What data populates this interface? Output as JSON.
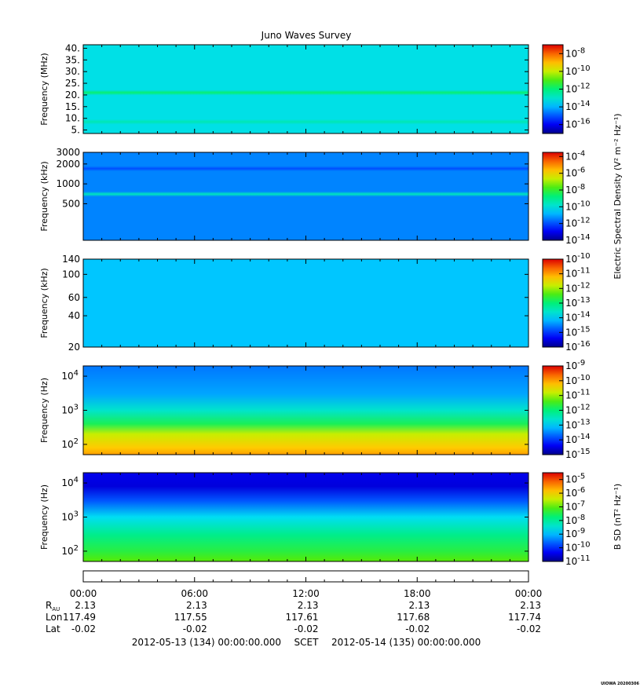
{
  "title": "Juno Waves Survey",
  "footer_tag": "UIOWA 20200306",
  "colorbar_labels": {
    "electric": "Electric Spectral Density (V² m⁻² Hz⁻¹)",
    "magnetic": "B SD (nT² Hz⁻¹)"
  },
  "chart_data": [
    {
      "type": "heatmap",
      "panel": "hfr-high",
      "ylabel": "Frequency (MHz)",
      "yscale": "linear",
      "ylim": [
        3.5,
        41.5
      ],
      "yticks": [
        "5.",
        "10.",
        "15.",
        "20.",
        "25.",
        "30.",
        "35.",
        "40."
      ],
      "ytick_values": [
        5,
        10,
        15,
        20,
        25,
        30,
        35,
        40
      ],
      "colorbar": {
        "scale": "log",
        "range_exp": [
          -17,
          -7
        ],
        "tick_bases": [
          "10",
          "10",
          "10",
          "10",
          "10"
        ],
        "tick_exponents": [
          "-16",
          "-14",
          "-12",
          "-10",
          "-8"
        ],
        "tick_values_exp": [
          -16,
          -14,
          -12,
          -10,
          -8
        ]
      },
      "background_level_exp": -13.3,
      "bands": [
        {
          "freq": 21,
          "level_exp": -11.9
        },
        {
          "freq": 8.5,
          "level_exp": -12.7
        }
      ]
    },
    {
      "type": "heatmap",
      "panel": "hfr-low",
      "ylabel": "Frequency (kHz)",
      "yscale": "log",
      "ylim": [
        140,
        3000
      ],
      "yticks": [
        "500",
        "1000",
        "2000",
        "3000"
      ],
      "ytick_values": [
        500,
        1000,
        2000,
        3000
      ],
      "colorbar": {
        "scale": "log",
        "range_exp": [
          -14,
          -3.5
        ],
        "tick_bases": [
          "10",
          "10",
          "10",
          "10",
          "10",
          "10"
        ],
        "tick_exponents": [
          "-14",
          "-12",
          "-10",
          "-8",
          "-6",
          "-4"
        ],
        "tick_values_exp": [
          -14,
          -12,
          -10,
          -8,
          -6,
          -4
        ]
      },
      "background_level_exp": -11.4,
      "bands": [
        {
          "freq": 700,
          "level_exp": -9.6
        },
        {
          "freq": 1700,
          "level_exp": -12.0
        }
      ]
    },
    {
      "type": "heatmap",
      "panel": "lfr-high",
      "ylabel": "Frequency (kHz)",
      "yscale": "log",
      "ylim": [
        20,
        140
      ],
      "yticks": [
        "20",
        "40",
        "60",
        "100",
        "140"
      ],
      "ytick_values": [
        20,
        40,
        60,
        100,
        140
      ],
      "colorbar": {
        "scale": "log",
        "range_exp": [
          -16,
          -10
        ],
        "tick_bases": [
          "10",
          "10",
          "10",
          "10",
          "10",
          "10",
          "10"
        ],
        "tick_exponents": [
          "-16",
          "-15",
          "-14",
          "-13",
          "-12",
          "-11",
          "-10"
        ],
        "tick_values_exp": [
          -16,
          -15,
          -14,
          -13,
          -12,
          -11,
          -10
        ]
      },
      "background_level_exp": -14.1,
      "bands": []
    },
    {
      "type": "heatmap",
      "panel": "lfr-low-electric",
      "ylabel": "Frequency (Hz)",
      "yscale": "log",
      "ylim": [
        50,
        20000
      ],
      "yticks": [
        "10",
        "10",
        "10"
      ],
      "ytick_exponents": [
        "2",
        "3",
        "4"
      ],
      "ytick_values": [
        100,
        1000,
        10000
      ],
      "colorbar": {
        "scale": "log",
        "range_exp": [
          -15,
          -9
        ],
        "tick_bases": [
          "10",
          "10",
          "10",
          "10",
          "10",
          "10",
          "10"
        ],
        "tick_exponents": [
          "-15",
          "-14",
          "-13",
          "-12",
          "-11",
          "-10",
          "-9"
        ],
        "tick_values_exp": [
          -15,
          -14,
          -13,
          -12,
          -11,
          -10,
          -9
        ]
      },
      "profile": [
        {
          "freq": 20000,
          "level_exp": -13.6
        },
        {
          "freq": 3000,
          "level_exp": -13.3
        },
        {
          "freq": 1000,
          "level_exp": -12.6
        },
        {
          "freq": 400,
          "level_exp": -11.8
        },
        {
          "freq": 200,
          "level_exp": -10.8
        },
        {
          "freq": 80,
          "level_exp": -10.3
        },
        {
          "freq": 50,
          "level_exp": -10.0
        }
      ]
    },
    {
      "type": "heatmap",
      "panel": "lfr-low-magnetic",
      "ylabel": "Frequency (Hz)",
      "yscale": "log",
      "ylim": [
        50,
        20000
      ],
      "yticks": [
        "10",
        "10",
        "10"
      ],
      "ytick_exponents": [
        "2",
        "3",
        "4"
      ],
      "ytick_values": [
        100,
        1000,
        10000
      ],
      "colorbar": {
        "scale": "log",
        "range_exp": [
          -11,
          -4.5
        ],
        "tick_bases": [
          "10",
          "10",
          "10",
          "10",
          "10",
          "10",
          "10"
        ],
        "tick_exponents": [
          "-11",
          "-10",
          "-9",
          "-8",
          "-7",
          "-6",
          "-5"
        ],
        "tick_values_exp": [
          -11,
          -10,
          -9,
          -8,
          -7,
          -6,
          -5
        ]
      },
      "profile": [
        {
          "freq": 20000,
          "level_exp": -10.4
        },
        {
          "freq": 8000,
          "level_exp": -10.5
        },
        {
          "freq": 3000,
          "level_exp": -9.7
        },
        {
          "freq": 1000,
          "level_exp": -8.7
        },
        {
          "freq": 300,
          "level_exp": -7.9
        },
        {
          "freq": 100,
          "level_exp": -7.4
        },
        {
          "freq": 50,
          "level_exp": -7.0
        }
      ]
    }
  ],
  "time_axis": {
    "ticks": [
      "00:00",
      "06:00",
      "12:00",
      "18:00",
      "00:00"
    ],
    "tick_hours": [
      0,
      6,
      12,
      18,
      24
    ],
    "range_hours": [
      0,
      24
    ],
    "rows": [
      {
        "label": "R",
        "sub": "AU",
        "values": [
          "2.13",
          "2.13",
          "2.13",
          "2.13",
          "2.13"
        ]
      },
      {
        "label": "Lon",
        "sub": "",
        "values": [
          "117.49",
          "117.55",
          "117.61",
          "117.68",
          "117.74"
        ]
      },
      {
        "label": "Lat",
        "sub": "",
        "values": [
          "-0.02",
          "-0.02",
          "-0.02",
          "-0.02",
          "-0.02"
        ]
      }
    ],
    "start": "2012-05-13 (134) 00:00:00.000",
    "frame": "SCET",
    "end": "2012-05-14 (135) 00:00:00.000"
  }
}
